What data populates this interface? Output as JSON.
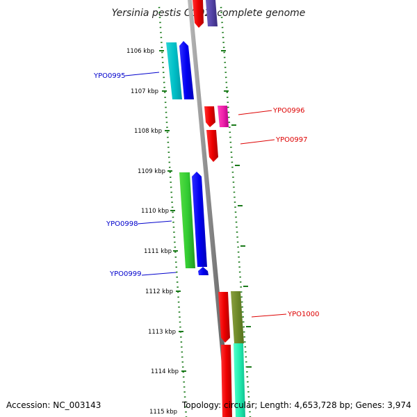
{
  "title": "Yersinia pestis CO92, complete genome",
  "footer": {
    "accession": "Accession: NC_003143",
    "topology": "Topology: circular; Length: 4,653,728 bp; Genes: 3,974"
  },
  "axis": {
    "ticks": [
      "1106 kbp",
      "1107 kbp",
      "1108 kbp",
      "1109 kbp",
      "1110 kbp",
      "1111 kbp",
      "1112 kbp",
      "1113 kbp",
      "1114 kbp",
      "1115 kbp"
    ]
  },
  "gene_labels": [
    {
      "text": "YPO0995",
      "color": "#0000cc"
    },
    {
      "text": "YPO0996",
      "color": "#dd0000"
    },
    {
      "text": "YPO0997",
      "color": "#dd0000"
    },
    {
      "text": "YPO0998",
      "color": "#0000cc"
    },
    {
      "text": "YPO0999",
      "color": "#0000cc"
    },
    {
      "text": "YPO1000",
      "color": "#dd0000"
    }
  ],
  "colors": {
    "backbone": "#888888",
    "dotted_track": "#1a7a1a",
    "label_left": "#0000cc",
    "label_right": "#dd0000"
  }
}
